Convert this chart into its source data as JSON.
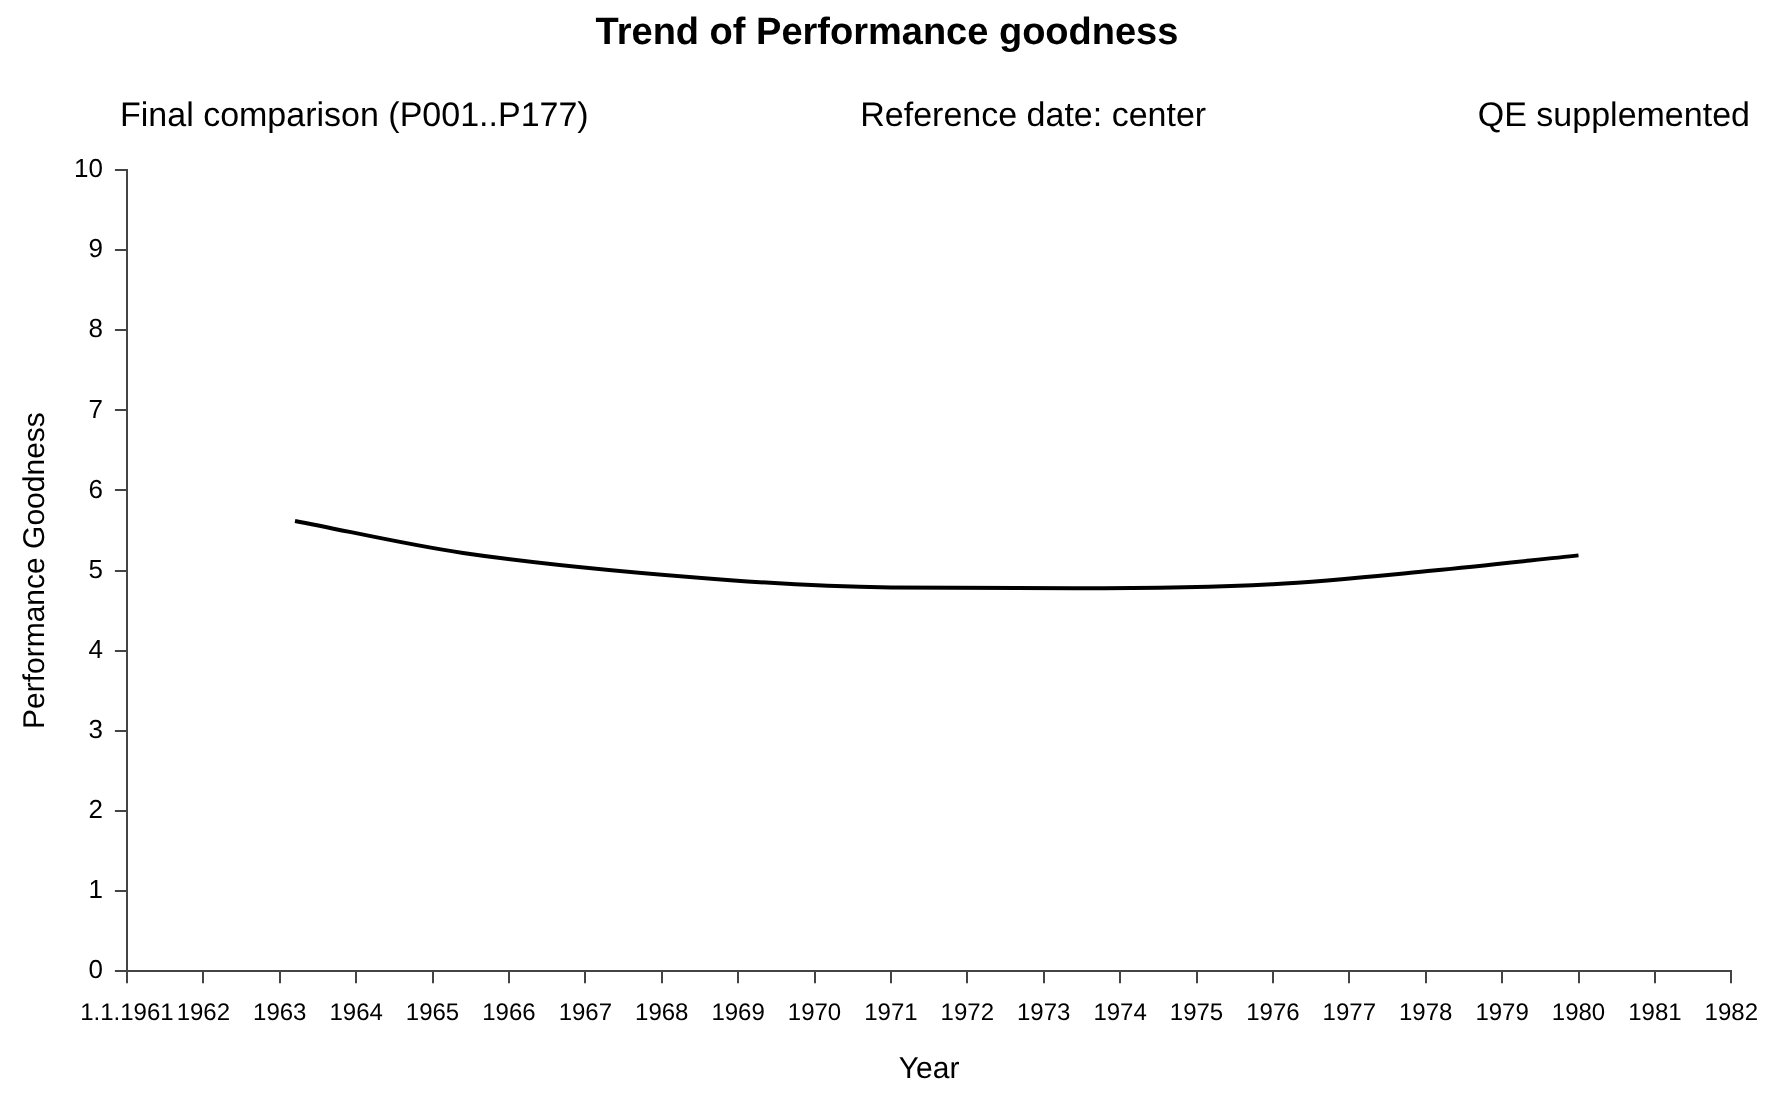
{
  "chart_data": {
    "type": "line",
    "title": "Trend of Performance goodness",
    "annotations": [
      "Final comparison (P001..P177)",
      "Reference date: center",
      "QE supplemented"
    ],
    "xlabel": "Year",
    "ylabel": "Performance Goodness",
    "x": [
      1963.2,
      1965.4,
      1968.9,
      1971.0,
      1973.4,
      1976.0,
      1978.1,
      1980.0
    ],
    "series": [
      {
        "color": "#000000",
        "values": [
          5.62,
          5.22,
          4.88,
          4.79,
          4.78,
          4.83,
          5.0,
          5.19
        ]
      }
    ],
    "xlim": [
      1961,
      1982
    ],
    "xticks": [
      {
        "value": 1961,
        "label": "1.1.1961"
      },
      1962,
      1963,
      1964,
      1965,
      1966,
      1967,
      1968,
      1969,
      1970,
      1971,
      1972,
      1973,
      1974,
      1975,
      1976,
      1977,
      1978,
      1979,
      1980,
      1981,
      1982
    ],
    "ylim": [
      0,
      10
    ],
    "yticks": [
      0,
      1,
      2,
      3,
      4,
      5,
      6,
      7,
      8,
      9,
      10
    ],
    "grid": false,
    "legend": false,
    "marker": "none",
    "line_style": "solid"
  }
}
